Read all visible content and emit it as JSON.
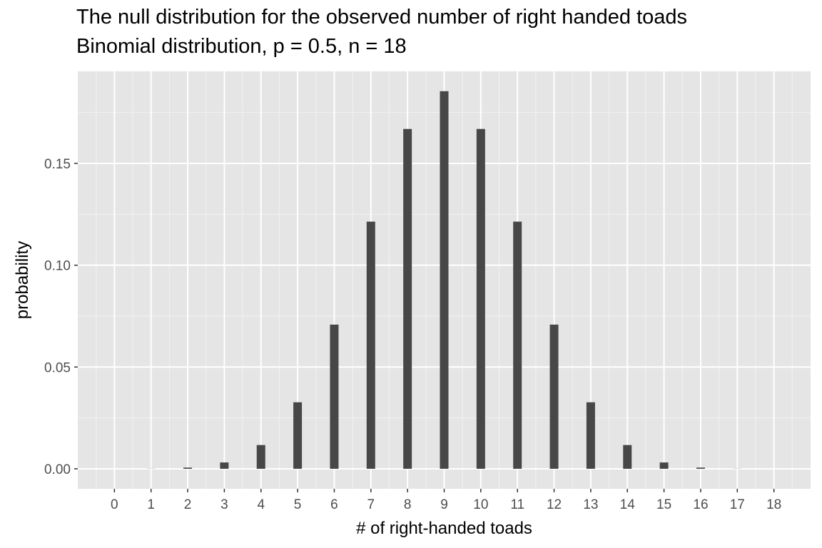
{
  "chart_data": {
    "type": "bar",
    "title": "The null distribution for the observed number of right handed toads",
    "subtitle": "Binomial distribution, p = 0.5, n = 18",
    "xlabel": "# of right-handed toads",
    "ylabel": "probability",
    "categories": [
      "0",
      "1",
      "2",
      "3",
      "4",
      "5",
      "6",
      "7",
      "8",
      "9",
      "10",
      "11",
      "12",
      "13",
      "14",
      "15",
      "16",
      "17",
      "18"
    ],
    "x": [
      0,
      1,
      2,
      3,
      4,
      5,
      6,
      7,
      8,
      9,
      10,
      11,
      12,
      13,
      14,
      15,
      16,
      17,
      18
    ],
    "values": [
      3.8e-06,
      6.87e-05,
      0.000584,
      0.00311,
      0.01167,
      0.03268,
      0.07082,
      0.1214,
      0.16692,
      0.18547,
      0.16692,
      0.1214,
      0.07082,
      0.03268,
      0.01167,
      0.00311,
      0.000584,
      6.87e-05,
      3.8e-06
    ],
    "y_ticks": [
      "0.00",
      "0.05",
      "0.10",
      "0.15"
    ],
    "y_tick_values": [
      0,
      0.05,
      0.1,
      0.15
    ],
    "xlim": [
      -1,
      19
    ],
    "ylim": [
      0,
      0.195
    ],
    "bar_color": "#474747",
    "panel_background": "#e5e5e5",
    "grid": true,
    "legend": "none"
  }
}
